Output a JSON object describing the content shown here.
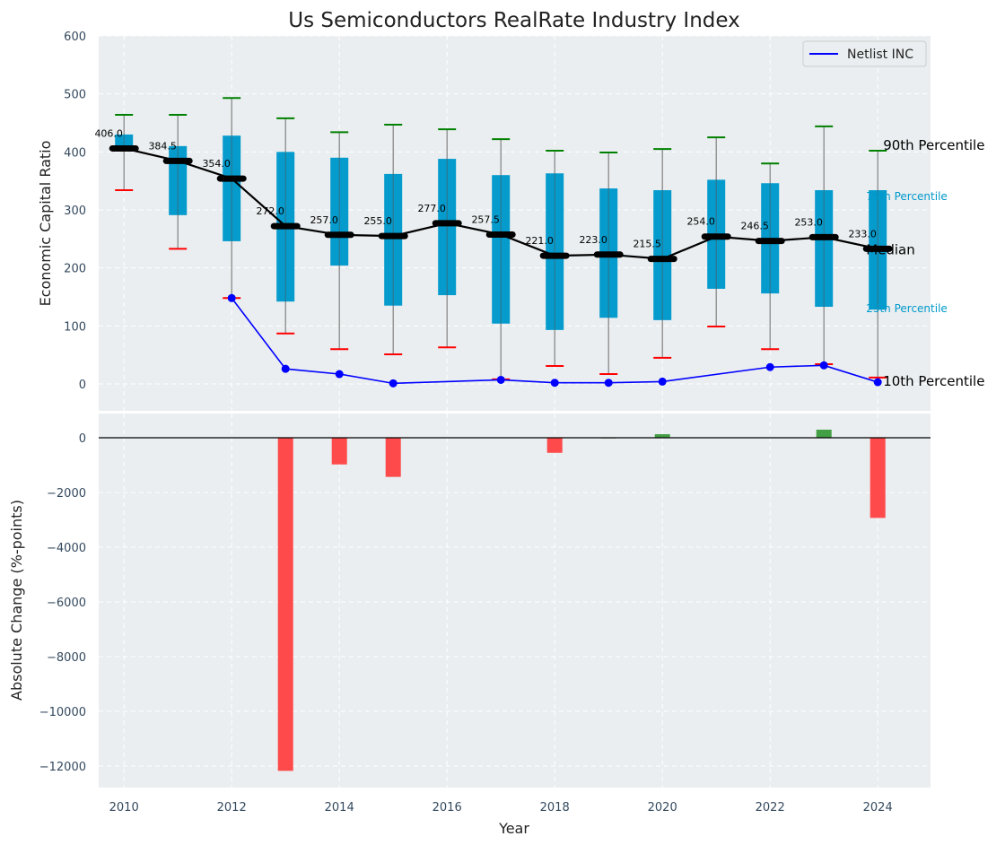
{
  "chart_data": [
    {
      "type": "box",
      "title": "Us Semiconductors RealRate Industry Index",
      "xlabel": "",
      "ylabel": "Economic Capital Ratio",
      "ylim": [
        0,
        600
      ],
      "yticks": [
        0,
        100,
        200,
        300,
        400,
        500,
        600
      ],
      "grid": true,
      "legend": {
        "placement": "top-right",
        "entries": [
          {
            "label": "Netlist INC",
            "color": "#0000ff"
          }
        ]
      },
      "x": [
        2010,
        2011,
        2012,
        2013,
        2014,
        2015,
        2016,
        2017,
        2018,
        2019,
        2020,
        2021,
        2022,
        2023,
        2024
      ],
      "series": [
        {
          "name": "90th Percentile",
          "values": [
            464,
            464,
            493,
            458,
            434,
            447,
            439,
            422,
            402,
            399,
            405,
            425,
            380,
            444,
            402
          ],
          "color": "#008000"
        },
        {
          "name": "75th Percentile",
          "values": [
            430,
            410,
            428,
            400,
            390,
            362,
            388,
            360,
            363,
            337,
            334,
            352,
            346,
            334,
            334
          ],
          "color": "#0099cc"
        },
        {
          "name": "Median",
          "values": [
            406.0,
            384.5,
            354.0,
            272.0,
            257.0,
            255.0,
            277.0,
            257.5,
            221.0,
            223.0,
            215.5,
            254.0,
            246.5,
            253.0,
            233.0
          ],
          "color": "#000000"
        },
        {
          "name": "25th Percentile",
          "values": [
            406,
            291,
            246,
            142,
            204,
            135,
            153,
            104,
            93,
            114,
            110,
            164,
            156,
            133,
            128
          ],
          "color": "#0099cc"
        },
        {
          "name": "10th Percentile",
          "values": [
            334,
            233,
            148,
            87,
            60,
            51,
            63,
            8,
            31,
            17,
            45,
            99,
            60,
            34,
            11
          ],
          "color": "#ff0000"
        },
        {
          "name": "Netlist INC",
          "values": [
            null,
            null,
            148,
            26,
            17,
            1,
            null,
            7,
            2,
            2,
            4,
            null,
            29,
            32,
            3
          ],
          "color": "#0000ff"
        }
      ],
      "median_labels": [
        "406.0",
        "384.5",
        "354.0",
        "272.0",
        "257.0",
        "255.0",
        "277.0",
        "257.5",
        "221.0",
        "223.0",
        "215.5",
        "254.0",
        "246.5",
        "253.0",
        "233.0"
      ],
      "annotations": [
        "90th Percentile",
        "75th Percentile",
        "Median",
        "25th Percentile",
        "10th Percentile"
      ]
    },
    {
      "type": "bar",
      "title": "",
      "xlabel": "Year",
      "ylabel": "Absolute Change (%-points)",
      "ylim": [
        -12800,
        900
      ],
      "yticks": [
        0,
        -2000,
        -4000,
        -6000,
        -8000,
        -10000,
        -12000
      ],
      "ytick_labels": [
        "0",
        "−2000",
        "−4000",
        "−6000",
        "−8000",
        "−10000",
        "−12000"
      ],
      "grid": true,
      "x": [
        2010,
        2011,
        2012,
        2013,
        2014,
        2015,
        2016,
        2017,
        2018,
        2019,
        2020,
        2021,
        2022,
        2023,
        2024
      ],
      "values": [
        null,
        null,
        null,
        -12175,
        -975,
        -1430,
        null,
        null,
        -550,
        10,
        130,
        null,
        null,
        295,
        -2930
      ],
      "colors": {
        "positive": "#3a9a3a",
        "negative": "#ff4040"
      }
    }
  ],
  "xaxis": {
    "ticks": [
      2010,
      2012,
      2014,
      2016,
      2018,
      2020,
      2022,
      2024
    ],
    "xlim": [
      2009.53,
      2024.98
    ]
  }
}
